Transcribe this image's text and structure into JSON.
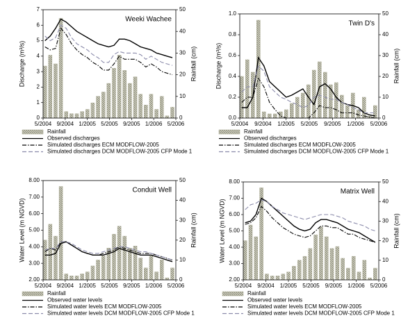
{
  "chart_data": [
    {
      "type": "bar-line",
      "title": "Weeki Wachee",
      "y_label": "Discharge (m³/s)",
      "y2_label": "Rainfall (cm)",
      "categories": [
        "5/2004",
        null,
        null,
        null,
        "9/2004",
        null,
        null,
        null,
        "1/2005",
        null,
        null,
        null,
        "5/2005",
        null,
        null,
        null,
        "9/2005",
        null,
        null,
        null,
        "1/2006",
        null,
        null,
        null,
        "5/2006"
      ],
      "ylim": [
        0,
        7
      ],
      "yticks": [
        0,
        1,
        2,
        3,
        4,
        5,
        6,
        7
      ],
      "y2lim": [
        0,
        50
      ],
      "y2ticks": [
        0,
        10,
        20,
        30,
        40,
        50
      ],
      "series": [
        {
          "name": "Rainfall",
          "type": "bar",
          "axis": "y2",
          "color": "#a8a890",
          "values": [
            24,
            29,
            25,
            46,
            3,
            2,
            2,
            3,
            4,
            7,
            10,
            12,
            16,
            23,
            29,
            22,
            16,
            19,
            11,
            6,
            11,
            4,
            10,
            1,
            5
          ]
        },
        {
          "name": "Observed discharges",
          "type": "line",
          "dash": "solid",
          "color": "#000000",
          "values": [
            5.0,
            5.3,
            5.8,
            6.4,
            6.2,
            5.9,
            5.6,
            5.4,
            5.2,
            5.0,
            4.8,
            4.7,
            4.6,
            4.7,
            5.1,
            5.1,
            5.0,
            4.8,
            4.6,
            4.5,
            4.4,
            4.2,
            4.1,
            4.0,
            3.9
          ]
        },
        {
          "name": "Simulated discharges ECM MODFLOW-2005",
          "type": "line",
          "dash": "dashdot",
          "color": "#000000",
          "values": [
            4.6,
            4.4,
            4.5,
            5.8,
            5.4,
            4.8,
            4.4,
            4.1,
            3.9,
            3.6,
            3.4,
            3.1,
            3.1,
            3.5,
            4.0,
            3.8,
            3.8,
            3.8,
            3.6,
            3.3,
            3.5,
            3.3,
            3.0,
            2.9,
            2.8
          ]
        },
        {
          "name": "Simulated discharges DCM MODFLOW-2005 CFP Mode 1",
          "type": "line",
          "dash": "dash",
          "color": "#8a8aaa",
          "values": [
            5.3,
            5.0,
            5.2,
            6.0,
            5.8,
            5.2,
            4.8,
            4.6,
            4.4,
            4.1,
            3.9,
            3.6,
            3.6,
            4.1,
            4.3,
            4.2,
            4.2,
            4.2,
            4.1,
            3.8,
            4.0,
            3.8,
            3.6,
            3.5,
            3.4
          ]
        }
      ]
    },
    {
      "type": "bar-line",
      "title": "Twin D's",
      "y_label": "Discharge (m³/s)",
      "y2_label": "Rainfall (cm)",
      "categories": [
        "5/2004",
        null,
        null,
        null,
        "9/2004",
        null,
        null,
        null,
        "1/2005",
        null,
        null,
        null,
        "5/2005",
        null,
        null,
        null,
        "9/2005",
        null,
        null,
        null,
        "1/2006",
        null,
        null,
        null,
        "5/2006"
      ],
      "ylim": [
        0,
        1
      ],
      "yticks": [
        {
          "value": 0,
          "label": "0.0"
        },
        {
          "value": 0.2,
          "label": "0.2"
        },
        {
          "value": 0.4,
          "label": "0.4"
        },
        {
          "value": 0.6,
          "label": "0.6"
        },
        {
          "value": 0.8,
          "label": "0.8"
        },
        {
          "value": 1,
          "label": "1.0"
        }
      ],
      "y2lim": [
        0,
        50
      ],
      "y2ticks": [
        0,
        10,
        20,
        30,
        40,
        50
      ],
      "series": [
        {
          "name": "Rainfall",
          "type": "bar",
          "axis": "y2",
          "color": "#a8a890",
          "values": [
            20,
            28,
            22,
            47,
            3,
            2,
            2,
            3,
            4,
            7,
            10,
            12,
            16,
            23,
            27,
            22,
            16,
            17,
            11,
            6,
            12,
            4,
            10,
            1,
            6
          ]
        },
        {
          "name": "Observed discharges",
          "type": "line",
          "dash": "solid",
          "color": "#000000",
          "values": [
            0.1,
            0.1,
            0.2,
            0.58,
            0.5,
            0.35,
            0.3,
            0.25,
            0.2,
            0.22,
            0.25,
            0.28,
            0.2,
            0.13,
            0.3,
            0.33,
            0.28,
            0.2,
            0.15,
            0.13,
            0.12,
            0.1,
            0.05,
            0.03,
            0.02
          ]
        },
        {
          "name": "Simulated discharges ECM MODFLOW-2005",
          "type": "line",
          "dash": "dashdot",
          "color": "#000000",
          "values": [
            0.15,
            0.2,
            0.2,
            0.38,
            0.3,
            0.15,
            0.08,
            0.02,
            0,
            0,
            0,
            0,
            0,
            0.05,
            0.12,
            0.1,
            0.1,
            0.08,
            0.05,
            0.05,
            0.05,
            0.03,
            0.02,
            0.01,
            0
          ]
        },
        {
          "name": "Simulated discharges DCM MODFLOW-2005 CFP Mode 1",
          "type": "line",
          "dash": "dash",
          "color": "#8a8aaa",
          "values": [
            0.25,
            0.3,
            0.3,
            0.5,
            0.45,
            0.3,
            0.25,
            0.2,
            0.18,
            0.15,
            0.13,
            0.1,
            0.12,
            0.2,
            0.22,
            0.2,
            0.18,
            0.18,
            0.15,
            0.13,
            0.1,
            0.08,
            0.05,
            0.05,
            0.05
          ]
        }
      ]
    },
    {
      "type": "bar-line",
      "title": "Conduit Well",
      "y_label": "Water Level (m NGVD)",
      "y2_label": "Rainfall (cm)",
      "categories": [
        "5/2004",
        null,
        null,
        null,
        "9/2004",
        null,
        null,
        null,
        "1/2005",
        null,
        null,
        null,
        "5/2005",
        null,
        null,
        null,
        "9/2005",
        null,
        null,
        null,
        "1/2006",
        null,
        null,
        null,
        "5/2006"
      ],
      "ylim": [
        2,
        8
      ],
      "yticks": [
        {
          "value": 2,
          "label": "2.00"
        },
        {
          "value": 3,
          "label": "3.00"
        },
        {
          "value": 4,
          "label": "4.00"
        },
        {
          "value": 5,
          "label": "5.00"
        },
        {
          "value": 6,
          "label": "6.00"
        },
        {
          "value": 7,
          "label": "7.00"
        },
        {
          "value": 8,
          "label": "8.00"
        }
      ],
      "y2lim": [
        0,
        50
      ],
      "y2ticks": [
        0,
        10,
        20,
        30,
        40,
        50
      ],
      "series": [
        {
          "name": "Rainfall",
          "type": "bar",
          "axis": "y2",
          "color": "#a8a890",
          "values": [
            20,
            28,
            22,
            47,
            3,
            2,
            2,
            3,
            4,
            7,
            10,
            12,
            16,
            23,
            27,
            22,
            16,
            17,
            11,
            6,
            12,
            4,
            10,
            1,
            6
          ]
        },
        {
          "name": "Observed water levels",
          "type": "line",
          "dash": "solid",
          "color": "#000000",
          "values": [
            3.5,
            3.5,
            3.6,
            4.2,
            4.3,
            4.1,
            3.9,
            3.7,
            3.6,
            3.5,
            3.5,
            3.5,
            3.6,
            3.7,
            3.9,
            3.8,
            3.7,
            3.6,
            3.5,
            3.5,
            3.5,
            3.4,
            3.3,
            3.2,
            3.1
          ]
        },
        {
          "name": "Simulated water levels ECM MODFLOW-2005",
          "type": "line",
          "dash": "dashdot",
          "color": "#000000",
          "values": [
            3.7,
            3.9,
            3.8,
            4.3,
            4.3,
            4.1,
            3.9,
            3.7,
            3.6,
            3.5,
            3.5,
            3.6,
            3.7,
            3.8,
            4.0,
            3.9,
            3.8,
            3.7,
            3.6,
            3.6,
            3.6,
            3.5,
            3.4,
            3.3,
            3.2
          ]
        },
        {
          "name": "Simulated water levels DCM MODFLOW-2005 CFP Mode 1",
          "type": "line",
          "dash": "dash",
          "color": "#8a8aaa",
          "values": [
            3.8,
            3.9,
            3.9,
            4.3,
            4.3,
            4.2,
            4.0,
            3.8,
            3.7,
            3.6,
            3.6,
            3.7,
            3.8,
            3.9,
            4.0,
            4.0,
            3.9,
            3.8,
            3.7,
            3.7,
            3.6,
            3.5,
            3.4,
            3.3,
            3.2
          ]
        }
      ]
    },
    {
      "type": "bar-line",
      "title": "Matrix Well",
      "y_label": "Water Level (m NGVD)",
      "y2_label": "Rainfall (cm)",
      "categories": [
        "5/2004",
        null,
        null,
        null,
        "9/2004",
        null,
        null,
        null,
        "1/2005",
        null,
        null,
        null,
        "5/2005",
        null,
        null,
        null,
        "9/2005",
        null,
        null,
        null,
        "1/2006",
        null,
        null,
        null,
        "5/2006"
      ],
      "ylim": [
        2,
        8
      ],
      "yticks": [
        {
          "value": 2,
          "label": "2.00"
        },
        {
          "value": 3,
          "label": "3.00"
        },
        {
          "value": 4,
          "label": "4.00"
        },
        {
          "value": 5,
          "label": "5.00"
        },
        {
          "value": 6,
          "label": "6.00"
        },
        {
          "value": 7,
          "label": "7.00"
        },
        {
          "value": 8,
          "label": "8.00"
        }
      ],
      "y2lim": [
        0,
        50
      ],
      "y2ticks": [
        0,
        10,
        20,
        30,
        40,
        50
      ],
      "series": [
        {
          "name": "Rainfall",
          "type": "bar",
          "axis": "y2",
          "color": "#a8a890",
          "values": [
            20,
            28,
            22,
            47,
            3,
            2,
            2,
            3,
            4,
            7,
            10,
            12,
            16,
            23,
            27,
            22,
            16,
            17,
            11,
            6,
            12,
            4,
            10,
            1,
            6
          ]
        },
        {
          "name": "Observed water levels",
          "type": "line",
          "dash": "solid",
          "color": "#000000",
          "values": [
            5.5,
            5.6,
            6.0,
            7.0,
            6.8,
            6.5,
            6.2,
            5.9,
            5.6,
            5.3,
            5.1,
            5.0,
            5.1,
            5.5,
            5.7,
            5.7,
            5.6,
            5.5,
            5.3,
            5.1,
            5.0,
            4.9,
            4.7,
            4.5,
            4.3
          ]
        },
        {
          "name": "Simulated water levels ECM MODFLOW-2005",
          "type": "line",
          "dash": "dashdot",
          "color": "#000000",
          "values": [
            5.4,
            5.5,
            5.8,
            6.5,
            6.2,
            5.8,
            5.5,
            5.2,
            5.0,
            4.8,
            4.7,
            4.6,
            4.7,
            5.0,
            5.3,
            5.3,
            5.2,
            5.2,
            5.0,
            4.8,
            4.8,
            4.6,
            4.5,
            4.4,
            4.3
          ]
        },
        {
          "name": "Simulated water levels DCM MODFLOW-2005 CFP Mode 1",
          "type": "line",
          "dash": "dash",
          "color": "#8a8aaa",
          "values": [
            6.3,
            6.6,
            6.7,
            6.9,
            6.8,
            6.5,
            6.3,
            6.1,
            6.0,
            5.9,
            5.8,
            5.7,
            5.8,
            5.9,
            6.0,
            6.0,
            6.0,
            5.9,
            5.8,
            5.6,
            5.5,
            5.4,
            5.3,
            5.1,
            5.0
          ]
        }
      ]
    }
  ]
}
